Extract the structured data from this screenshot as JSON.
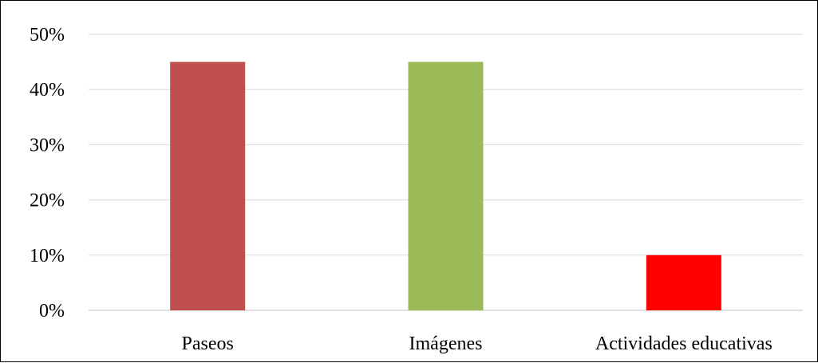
{
  "chart_data": {
    "type": "bar",
    "categories": [
      "Paseos",
      "Imágenes",
      "Actividades educativas"
    ],
    "values": [
      45,
      45,
      10
    ],
    "colors": [
      "#c0504d",
      "#9bbb59",
      "#ff0000"
    ],
    "y_ticks": [
      "0%",
      "10%",
      "20%",
      "30%",
      "40%",
      "50%"
    ],
    "ylim": [
      0,
      50
    ],
    "grid": true,
    "gridline_color": "#d9d9d9",
    "title": "",
    "xlabel": "",
    "ylabel": ""
  }
}
